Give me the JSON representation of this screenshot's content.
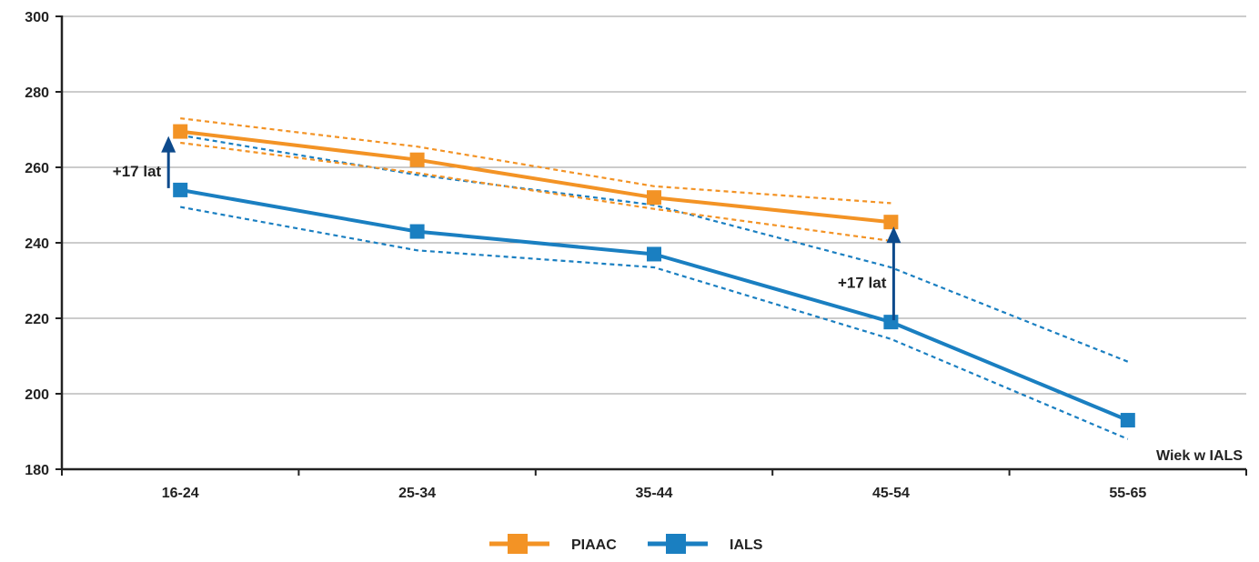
{
  "chart_data": {
    "type": "line",
    "categories": [
      "16-24",
      "25-34",
      "35-44",
      "45-54",
      "55-65"
    ],
    "ylim": [
      180,
      300
    ],
    "yticks": [
      180,
      200,
      220,
      240,
      260,
      280,
      300
    ],
    "grid": true,
    "xlabel_annotation": "Wiek w IALS",
    "legend_position": "bottom-center",
    "series": [
      {
        "name": "PIAAC",
        "color": "#F39325",
        "values": [
          269.5,
          262,
          252,
          245.5,
          null
        ],
        "ci_upper": [
          273,
          265.5,
          255,
          250.5,
          null
        ],
        "ci_lower": [
          266.5,
          258.5,
          249,
          240.5,
          null
        ]
      },
      {
        "name": "IALS",
        "color": "#1A7FC1",
        "values": [
          254,
          243,
          237,
          219,
          193
        ],
        "ci_upper": [
          268.5,
          258,
          250,
          233.5,
          208.5
        ],
        "ci_lower": [
          249.5,
          238,
          233.5,
          214.5,
          188
        ]
      }
    ],
    "annotations": [
      {
        "text": "+17 lat",
        "category": "16-24",
        "from": 254,
        "to": 269.5
      },
      {
        "text": "+17 lat",
        "category": "45-54",
        "from": 219,
        "to": 245.5
      }
    ],
    "arrow_color": "#0D4A8C"
  }
}
